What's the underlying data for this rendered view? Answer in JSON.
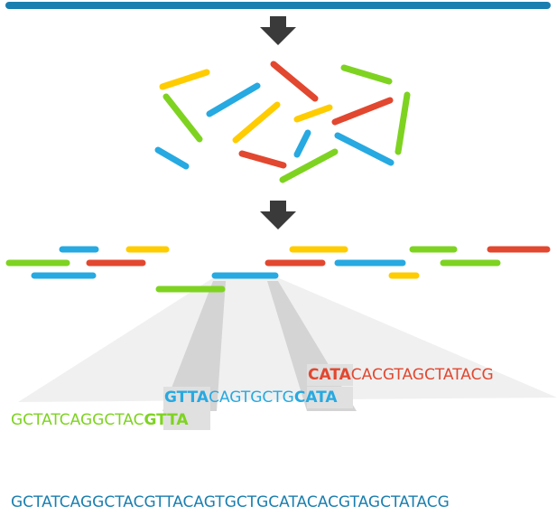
{
  "colors": {
    "dna": "#1a7fb0",
    "blue": "#27a9e1",
    "green": "#7ed321",
    "red": "#e2472f",
    "yellow": "#ffcc00",
    "arrow": "#3a3a3a",
    "shade": "#e6e6e6",
    "shade_dark": "#cfcfcf"
  },
  "icons": {
    "arrow1": "down-arrow-icon",
    "arrow2": "down-arrow-icon"
  },
  "reads": {
    "green": {
      "prefix": "GCTATCAGGCTAC",
      "overlap": "GTTA"
    },
    "blue": {
      "overlap_start": "GTTA",
      "middle": "CAGTGCTG",
      "overlap_end": "CATA"
    },
    "red": {
      "overlap": "CATA",
      "suffix": "CACGTAGCTATACG"
    }
  },
  "assembled_sequence": "GCTATCAGGCTACGTTACAGTGCTGCATACACGTAGCTATACG"
}
